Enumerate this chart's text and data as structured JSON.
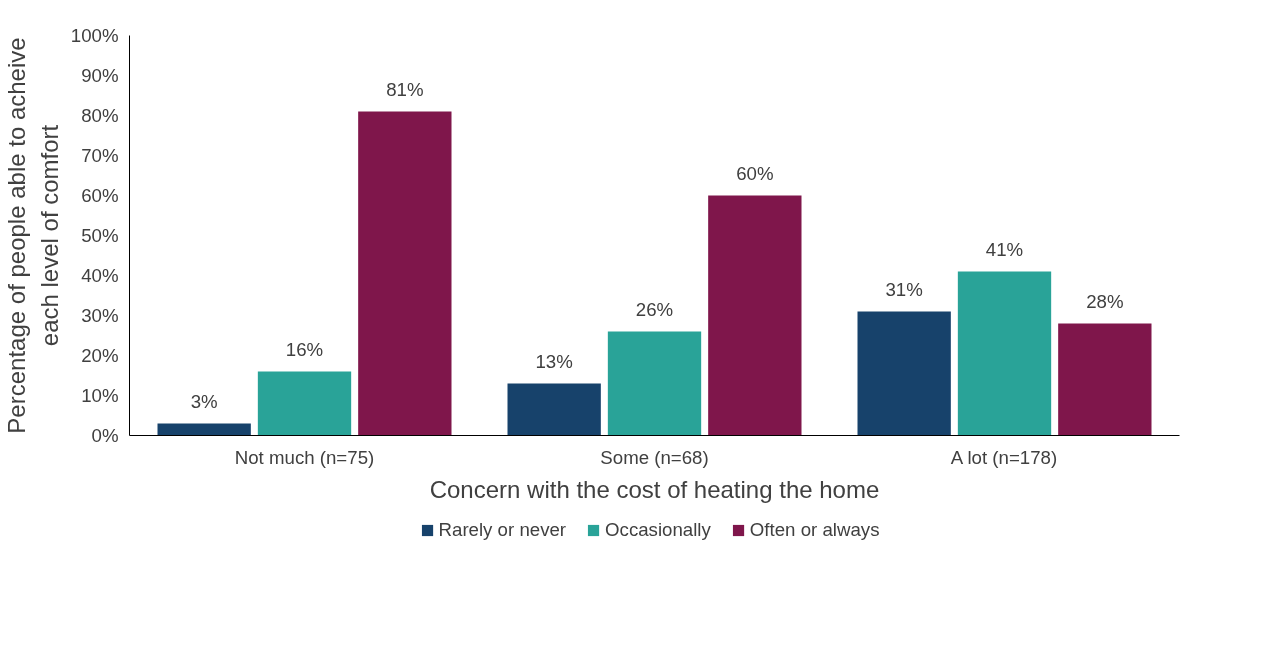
{
  "chart_data": {
    "type": "bar",
    "xlabel": "Concern with the cost of heating the home",
    "ylabel": "Percentage of people able to acheive each level of comfort",
    "categories": [
      "Not much (n=75)",
      "Some (n=68)",
      "A lot (n=178)"
    ],
    "series": [
      {
        "name": "Rarely or never",
        "color": "#17426b",
        "values": [
          3,
          13,
          31
        ],
        "value_labels": [
          "3%",
          "13%",
          "31%"
        ]
      },
      {
        "name": "Occasionally",
        "color": "#29a398",
        "values": [
          16,
          26,
          41
        ],
        "value_labels": [
          "16%",
          "26%",
          "41%"
        ]
      },
      {
        "name": "Often or always",
        "color": "#7f164b",
        "values": [
          81,
          60,
          28
        ],
        "value_labels": [
          "81%",
          "60%",
          "28%"
        ]
      }
    ],
    "ylim": [
      0,
      100
    ],
    "yticks": [
      {
        "value": 0,
        "label": "0%"
      },
      {
        "value": 10,
        "label": "10%"
      },
      {
        "value": 20,
        "label": "20%"
      },
      {
        "value": 30,
        "label": "30%"
      },
      {
        "value": 40,
        "label": "40%"
      },
      {
        "value": 50,
        "label": "50%"
      },
      {
        "value": 60,
        "label": "60%"
      },
      {
        "value": 70,
        "label": "70%"
      },
      {
        "value": 80,
        "label": "80%"
      },
      {
        "value": 90,
        "label": "90%"
      },
      {
        "value": 100,
        "label": "100%"
      }
    ],
    "grid": false,
    "legend": "bottom"
  }
}
